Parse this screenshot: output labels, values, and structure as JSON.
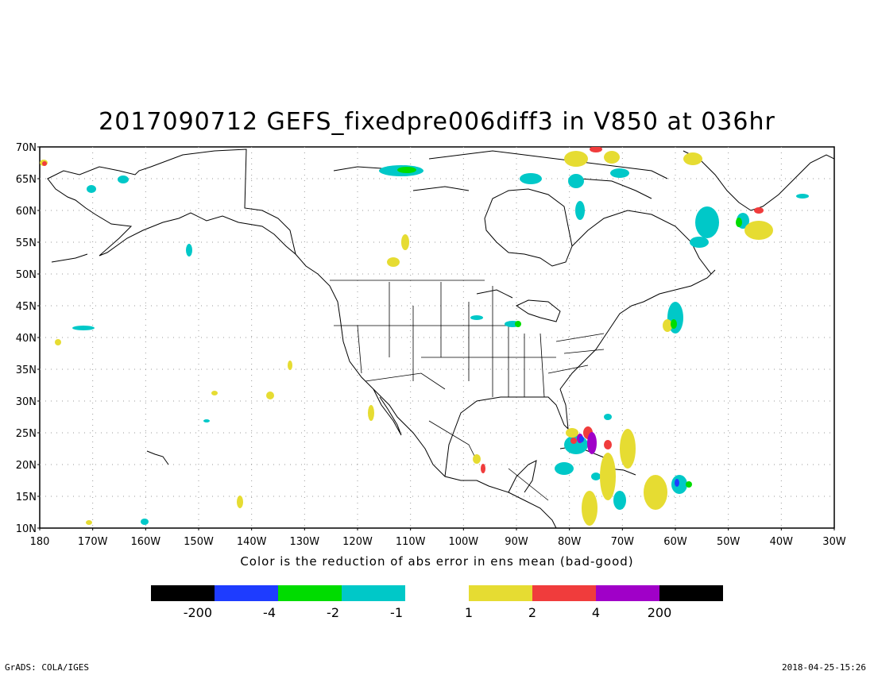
{
  "title": "2017090712 GEFS_fixedpre006diff3 in V850 at 036hr",
  "lat_labels": [
    "70N",
    "65N",
    "60N",
    "55N",
    "50N",
    "45N",
    "40N",
    "35N",
    "30N",
    "25N",
    "20N",
    "15N",
    "10N"
  ],
  "lon_labels": [
    "180",
    "170W",
    "160W",
    "150W",
    "140W",
    "130W",
    "120W",
    "110W",
    "100W",
    "90W",
    "80W",
    "70W",
    "60W",
    "50W",
    "40W",
    "30W"
  ],
  "caption": "Color is the reduction of abs error in ens mean (bad-good)",
  "colorbar": {
    "negative": [
      {
        "color": "#000000"
      },
      {
        "color": "#1e3cff"
      },
      {
        "color": "#00dc00"
      },
      {
        "color": "#00c8c8"
      }
    ],
    "positive": [
      {
        "color": "#e6dc32"
      },
      {
        "color": "#f03c3c"
      },
      {
        "color": "#a000c8"
      },
      {
        "color": "#000000"
      }
    ],
    "neg_labels": [
      "-200",
      "-4",
      "-2",
      "-1"
    ],
    "pos_labels": [
      "1",
      "2",
      "4",
      "200"
    ]
  },
  "map": {
    "extent": {
      "lon_min": -180,
      "lon_max": -30,
      "lat_min": 10,
      "lat_max": 70
    },
    "grid": "dotted",
    "coastline_color": "#000000"
  },
  "footer": {
    "left": "GrADS: COLA/IGES",
    "right": "2018-04-25-15:26"
  }
}
